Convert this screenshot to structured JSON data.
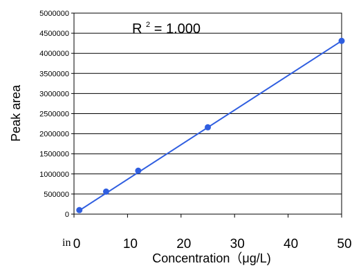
{
  "chart_data": {
    "type": "scatter",
    "x_label": "Concentration（μg/L)",
    "y_label": "Peak area",
    "annotation": {
      "base": "R",
      "superscript": "2",
      "rest": " = 1.000"
    },
    "x_ticks": [
      "0",
      "10",
      "20",
      "30",
      "40",
      "50"
    ],
    "y_ticks": [
      "0",
      "500000",
      "1000000",
      "1500000",
      "2000000",
      "2500000",
      "3000000",
      "3500000",
      "4000000",
      "4500000",
      "5000000"
    ],
    "xlim": [
      0,
      50
    ],
    "ylim": [
      0,
      5000000
    ],
    "grid": "horizontal major gridlines",
    "series": [
      {
        "color": "#2f5ee0",
        "x": [
          1,
          6,
          12,
          25,
          50
        ],
        "y": [
          100000,
          560000,
          1080000,
          2160000,
          4310000
        ]
      }
    ],
    "trendline": {
      "color": "#2f5ee0",
      "x": [
        1,
        50
      ],
      "y": [
        90000,
        4310000
      ]
    }
  },
  "stray_text": "in"
}
